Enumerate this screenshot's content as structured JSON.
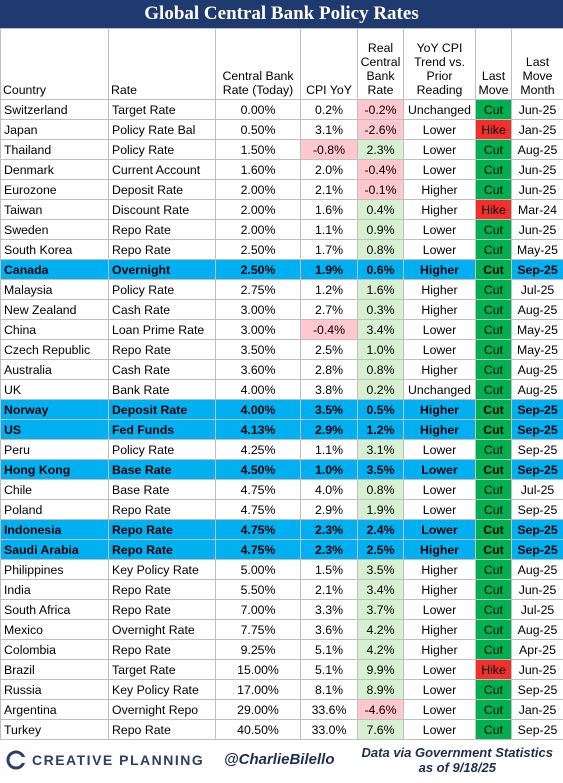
{
  "header": {
    "title": "Global Central Bank Policy Rates"
  },
  "table": {
    "columns": [
      "Country",
      "Rate",
      "Central Bank Rate (Today)",
      "CPI YoY",
      "Real Central Bank Rate",
      "YoY CPI Trend vs. Prior Reading",
      "Last Move",
      "Last Move Month"
    ],
    "highlighted_rows": [
      8,
      15,
      16,
      18,
      21,
      22
    ],
    "rows": [
      [
        "Switzerland",
        "Target Rate",
        "0.00%",
        "0.2%",
        "-0.2%",
        "Unchanged",
        "Cut",
        "Jun-25"
      ],
      [
        "Japan",
        "Policy Rate Bal",
        "0.50%",
        "3.1%",
        "-2.6%",
        "Lower",
        "Hike",
        "Jan-25"
      ],
      [
        "Thailand",
        "Policy Rate",
        "1.50%",
        "-0.8%",
        "2.3%",
        "Lower",
        "Cut",
        "Aug-25"
      ],
      [
        "Denmark",
        "Current Account",
        "1.60%",
        "2.0%",
        "-0.4%",
        "Lower",
        "Cut",
        "Jun-25"
      ],
      [
        "Eurozone",
        "Deposit Rate",
        "2.00%",
        "2.1%",
        "-0.1%",
        "Higher",
        "Cut",
        "Jun-25"
      ],
      [
        "Taiwan",
        "Discount Rate",
        "2.00%",
        "1.6%",
        "0.4%",
        "Higher",
        "Hike",
        "Mar-24"
      ],
      [
        "Sweden",
        "Repo Rate",
        "2.00%",
        "1.1%",
        "0.9%",
        "Lower",
        "Cut",
        "Jun-25"
      ],
      [
        "South Korea",
        "Repo Rate",
        "2.50%",
        "1.7%",
        "0.8%",
        "Lower",
        "Cut",
        "May-25"
      ],
      [
        "Canada",
        "Overnight",
        "2.50%",
        "1.9%",
        "0.6%",
        "Higher",
        "Cut",
        "Sep-25"
      ],
      [
        "Malaysia",
        "Policy Rate",
        "2.75%",
        "1.2%",
        "1.6%",
        "Higher",
        "Cut",
        "Jul-25"
      ],
      [
        "New Zealand",
        "Cash Rate",
        "3.00%",
        "2.7%",
        "0.3%",
        "Higher",
        "Cut",
        "Aug-25"
      ],
      [
        "China",
        "Loan Prime Rate",
        "3.00%",
        "-0.4%",
        "3.4%",
        "Lower",
        "Cut",
        "May-25"
      ],
      [
        "Czech Republic",
        "Repo Rate",
        "3.50%",
        "2.5%",
        "1.0%",
        "Lower",
        "Cut",
        "May-25"
      ],
      [
        "Australia",
        "Cash Rate",
        "3.60%",
        "2.8%",
        "0.8%",
        "Higher",
        "Cut",
        "Aug-25"
      ],
      [
        "UK",
        "Bank Rate",
        "4.00%",
        "3.8%",
        "0.2%",
        "Unchanged",
        "Cut",
        "Aug-25"
      ],
      [
        "Norway",
        "Deposit Rate",
        "4.00%",
        "3.5%",
        "0.5%",
        "Higher",
        "Cut",
        "Sep-25"
      ],
      [
        "US",
        "Fed Funds",
        "4.13%",
        "2.9%",
        "1.2%",
        "Higher",
        "Cut",
        "Sep-25"
      ],
      [
        "Peru",
        "Policy Rate",
        "4.25%",
        "1.1%",
        "3.1%",
        "Lower",
        "Cut",
        "Sep-25"
      ],
      [
        "Hong Kong",
        "Base Rate",
        "4.50%",
        "1.0%",
        "3.5%",
        "Lower",
        "Cut",
        "Sep-25"
      ],
      [
        "Chile",
        "Base Rate",
        "4.75%",
        "4.0%",
        "0.8%",
        "Lower",
        "Cut",
        "Jul-25"
      ],
      [
        "Poland",
        "Repo Rate",
        "4.75%",
        "2.9%",
        "1.9%",
        "Lower",
        "Cut",
        "Sep-25"
      ],
      [
        "Indonesia",
        "Repo Rate",
        "4.75%",
        "2.3%",
        "2.4%",
        "Lower",
        "Cut",
        "Sep-25"
      ],
      [
        "Saudi Arabia",
        "Repo Rate",
        "4.75%",
        "2.3%",
        "2.5%",
        "Higher",
        "Cut",
        "Sep-25"
      ],
      [
        "Philippines",
        "Key Policy Rate",
        "5.00%",
        "1.5%",
        "3.5%",
        "Higher",
        "Cut",
        "Aug-25"
      ],
      [
        "India",
        "Repo Rate",
        "5.50%",
        "2.1%",
        "3.4%",
        "Higher",
        "Cut",
        "Jun-25"
      ],
      [
        "South Africa",
        "Repo Rate",
        "7.00%",
        "3.3%",
        "3.7%",
        "Lower",
        "Cut",
        "Jul-25"
      ],
      [
        "Mexico",
        "Overnight Rate",
        "7.75%",
        "3.6%",
        "4.2%",
        "Higher",
        "Cut",
        "Aug-25"
      ],
      [
        "Colombia",
        "Repo Rate",
        "9.25%",
        "5.1%",
        "4.2%",
        "Higher",
        "Cut",
        "Apr-25"
      ],
      [
        "Brazil",
        "Target Rate",
        "15.00%",
        "5.1%",
        "9.9%",
        "Lower",
        "Hike",
        "Jun-25"
      ],
      [
        "Russia",
        "Key Policy Rate",
        "17.00%",
        "8.1%",
        "8.9%",
        "Lower",
        "Cut",
        "Sep-25"
      ],
      [
        "Argentina",
        "Overnight Repo",
        "29.00%",
        "33.6%",
        "-4.6%",
        "Lower",
        "Cut",
        "Jan-25"
      ],
      [
        "Turkey",
        "Repo Rate",
        "40.50%",
        "33.0%",
        "7.6%",
        "Lower",
        "Cut",
        "Sep-25"
      ]
    ]
  },
  "footer": {
    "brand": "CREATIVE PLANNING",
    "handle": "@CharlieBilello",
    "source": "Data via Government Statistics",
    "date": "as of 9/18/25"
  }
}
